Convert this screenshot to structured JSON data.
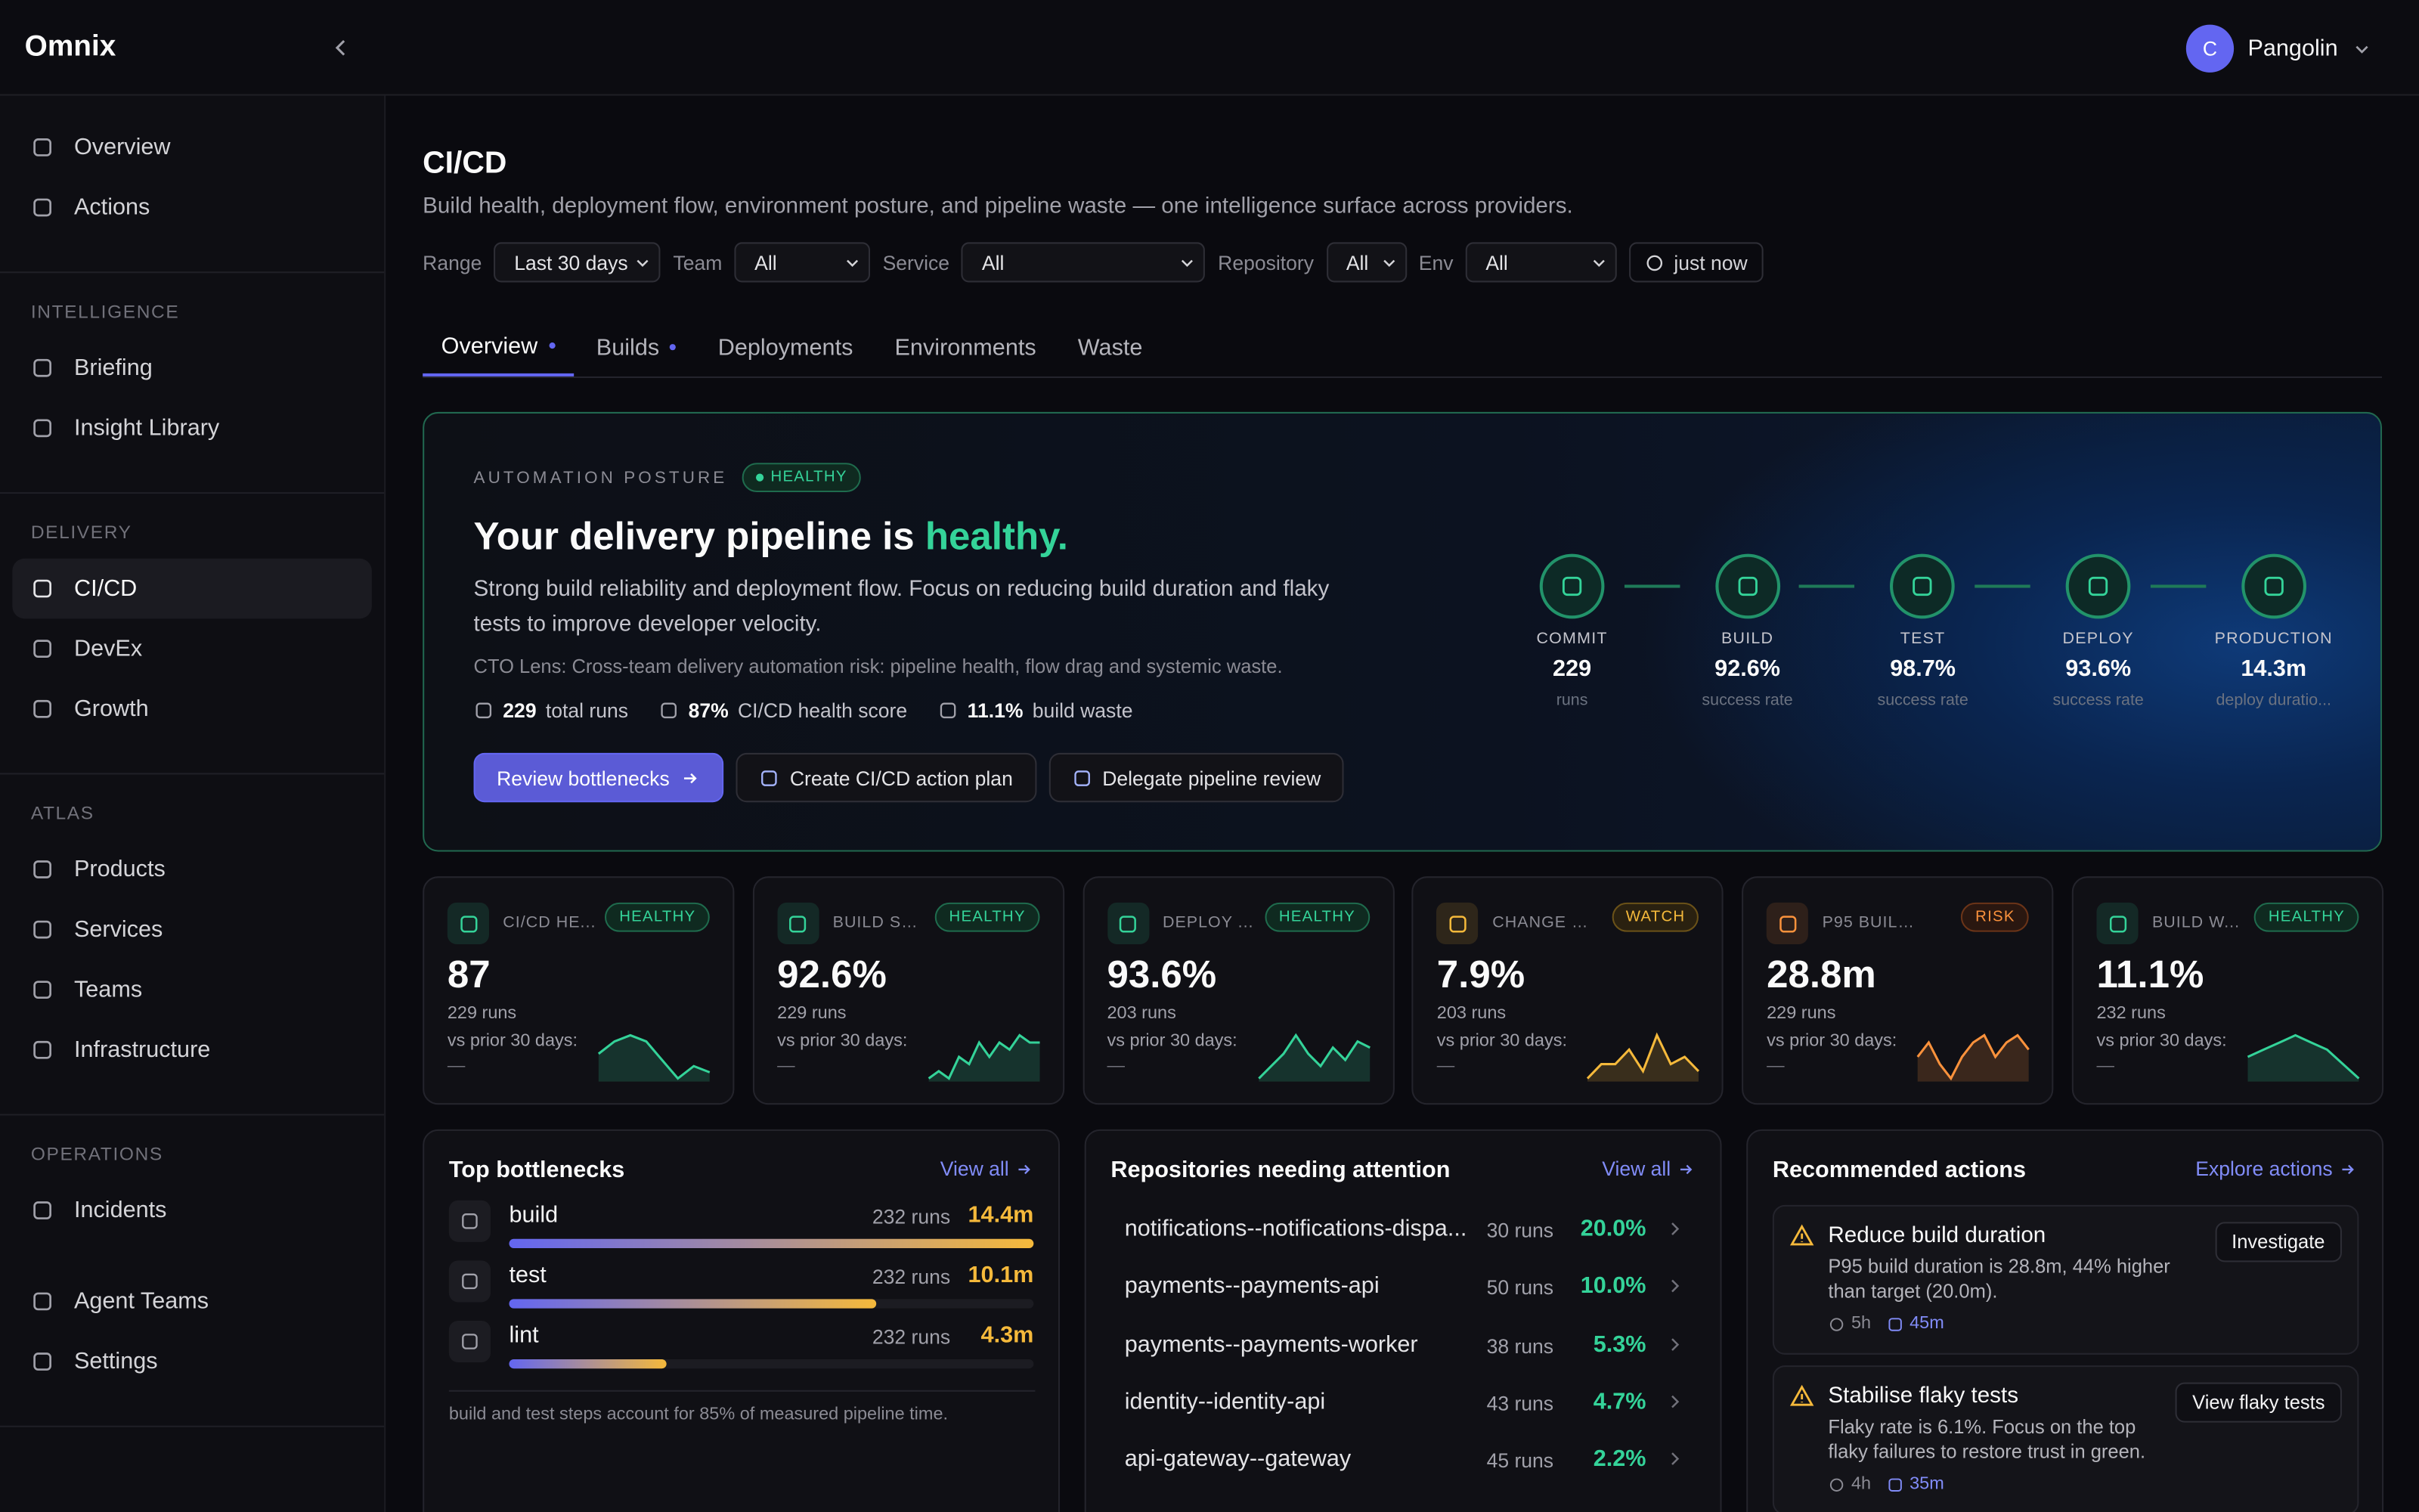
{
  "brand": "Omnix",
  "user": {
    "initial": "C",
    "name": "Pangolin"
  },
  "nav": {
    "top": [
      "Overview",
      "Actions"
    ],
    "sections": [
      {
        "title": "INTELLIGENCE",
        "items": [
          "Briefing",
          "Insight Library"
        ]
      },
      {
        "title": "DELIVERY",
        "items": [
          "CI/CD",
          "DevEx",
          "Growth"
        ],
        "active": 0
      },
      {
        "title": "ATLAS",
        "items": [
          "Products",
          "Services",
          "Teams",
          "Infrastructure"
        ]
      },
      {
        "title": "OPERATIONS",
        "items": [
          "Incidents"
        ]
      }
    ],
    "bottom": [
      "Agent Teams",
      "Settings"
    ]
  },
  "page": {
    "title": "CI/CD",
    "subtitle": "Build health, deployment flow, environment posture, and pipeline waste — one intelligence surface across providers."
  },
  "filters": [
    {
      "label": "Range",
      "value": "Last 30 days"
    },
    {
      "label": "Team",
      "value": "All"
    },
    {
      "label": "Service",
      "value": "All"
    },
    {
      "label": "Repository",
      "value": "All"
    },
    {
      "label": "Env",
      "value": "All"
    }
  ],
  "refresh": "just now",
  "tabs": [
    {
      "label": "Overview",
      "indicator": true
    },
    {
      "label": "Builds",
      "indicator": true
    },
    {
      "label": "Deployments",
      "indicator": false
    },
    {
      "label": "Environments",
      "indicator": false
    },
    {
      "label": "Waste",
      "indicator": false
    }
  ],
  "hero": {
    "eyebrow": "AUTOMATION POSTURE",
    "badge": "HEALTHY",
    "headline": "Your delivery pipeline is",
    "headline_status": "healthy.",
    "body": "Strong build reliability and deployment flow. Focus on reducing build duration and flaky tests to improve developer velocity.",
    "lens": "CTO Lens: Cross-team delivery automation risk: pipeline health, flow drag and systemic waste.",
    "stats": [
      {
        "value": "229",
        "label": "total runs"
      },
      {
        "value": "87%",
        "label": "CI/CD health score"
      },
      {
        "value": "11.1%",
        "label": "build waste"
      }
    ],
    "buttons": [
      "Review bottlenecks",
      "Create CI/CD action plan",
      "Delegate pipeline review"
    ],
    "stages": [
      {
        "name": "COMMIT",
        "value": "229",
        "caption": "runs"
      },
      {
        "name": "BUILD",
        "value": "92.6%",
        "caption": "success rate"
      },
      {
        "name": "TEST",
        "value": "98.7%",
        "caption": "success rate"
      },
      {
        "name": "DEPLOY",
        "value": "93.6%",
        "caption": "success rate"
      },
      {
        "name": "PRODUCTION",
        "value": "14.3m",
        "caption": "deploy duratio..."
      }
    ]
  },
  "kpis": [
    {
      "title": "CI/CD HE...",
      "badge": "HEALTHY",
      "value": "87",
      "runs": "229 runs",
      "compare": "vs prior 30 days:",
      "delta": "—",
      "trend": [
        4,
        6,
        7,
        6,
        3,
        0,
        2,
        1
      ]
    },
    {
      "title": "BUILD SU...",
      "badge": "HEALTHY",
      "value": "92.6%",
      "runs": "229 runs",
      "compare": "vs prior 30 days:",
      "delta": "—",
      "trend": [
        1,
        2,
        1,
        4,
        3,
        6,
        4,
        6,
        5,
        7,
        6,
        6
      ]
    },
    {
      "title": "DEPLOY ...",
      "badge": "HEALTHY",
      "value": "93.6%",
      "runs": "203 runs",
      "compare": "vs prior 30 days:",
      "delta": "—",
      "trend": [
        0,
        2,
        4,
        7,
        4,
        2,
        5,
        3,
        6,
        5
      ]
    },
    {
      "title": "CHANGE FA...",
      "badge": "WATCH",
      "value": "7.9%",
      "runs": "203 runs",
      "compare": "vs prior 30 days:",
      "delta": "—",
      "trend": [
        1,
        3,
        3,
        5,
        2,
        7,
        3,
        4,
        2
      ]
    },
    {
      "title": "P95 BUILD DU...",
      "badge": "RISK",
      "value": "28.8m",
      "runs": "229 runs",
      "compare": "vs prior 30 days:",
      "delta": "—",
      "trend": [
        3,
        5,
        2,
        0,
        3,
        5,
        6,
        3,
        5,
        6,
        4
      ]
    },
    {
      "title": "BUILD W...",
      "badge": "HEALTHY",
      "value": "11.1%",
      "runs": "232 runs",
      "compare": "vs prior 30 days:",
      "delta": "—",
      "trend": [
        4,
        5,
        6,
        7,
        6,
        5,
        3,
        1
      ]
    }
  ],
  "bottlenecks": {
    "title": "Top bottlenecks",
    "link": "View all",
    "items": [
      {
        "name": "build",
        "runs": "232 runs",
        "minutes": 14.4,
        "label": "14.4m"
      },
      {
        "name": "test",
        "runs": "232 runs",
        "minutes": 10.1,
        "label": "10.1m"
      },
      {
        "name": "lint",
        "runs": "232 runs",
        "minutes": 4.3,
        "label": "4.3m"
      }
    ],
    "note": "build and test steps account for 85% of measured pipeline time."
  },
  "repositories": {
    "title": "Repositories needing attention",
    "link": "View all",
    "items": [
      {
        "name": "notifications--notifications-dispa...",
        "runs": "30 runs",
        "rate": "20.0%"
      },
      {
        "name": "payments--payments-api",
        "runs": "50 runs",
        "rate": "10.0%"
      },
      {
        "name": "payments--payments-worker",
        "runs": "38 runs",
        "rate": "5.3%"
      },
      {
        "name": "identity--identity-api",
        "runs": "43 runs",
        "rate": "4.7%"
      },
      {
        "name": "api-gateway--gateway",
        "runs": "45 runs",
        "rate": "2.2%"
      }
    ]
  },
  "actions": {
    "title": "Recommended actions",
    "link": "Explore actions",
    "items": [
      {
        "title": "Reduce build duration",
        "body": "P95 build duration is 28.8m, 44% higher than target (20.0m).",
        "button": "Investigate",
        "owner_time": "5h",
        "effort": "45m"
      },
      {
        "title": "Stabilise flaky tests",
        "body": "Flaky rate is 6.1%. Focus on the top flaky failures to restore trust in green.",
        "button": "View flaky tests",
        "owner_time": "4h",
        "effort": "35m"
      }
    ]
  }
}
